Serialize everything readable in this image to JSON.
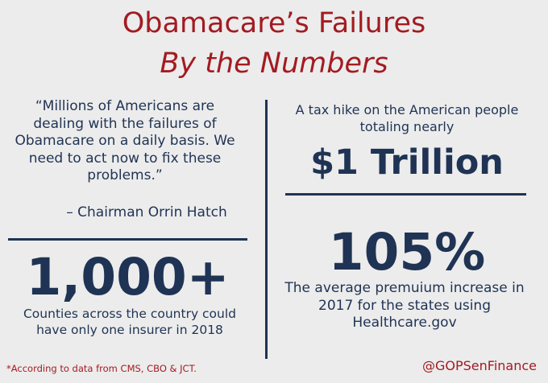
{
  "title": {
    "line1": "Obamacare’s Failures",
    "line2": "By the Numbers"
  },
  "quote": {
    "text": "“Millions of Americans are dealing with the failures of Obamacare on a daily basis. We need to act now to fix these problems.”",
    "attribution": "– Chairman Orrin Hatch"
  },
  "counties": {
    "figure": "1,000+",
    "caption": "Counties across the country could have only one insurer in 2018"
  },
  "tax": {
    "caption": "A tax hike on the American people totaling nearly",
    "figure": "$1 Trillion"
  },
  "premium": {
    "figure": "105%",
    "caption": "The average premuium increase in 2017 for the states using Healthcare.gov"
  },
  "footer": {
    "footnote": "*According to data from CMS, CBO & JCT.",
    "handle": "@GOPSenFinance"
  },
  "colors": {
    "title_red": "#a31b22",
    "navy": "#1f3354",
    "background": "#ececec"
  }
}
